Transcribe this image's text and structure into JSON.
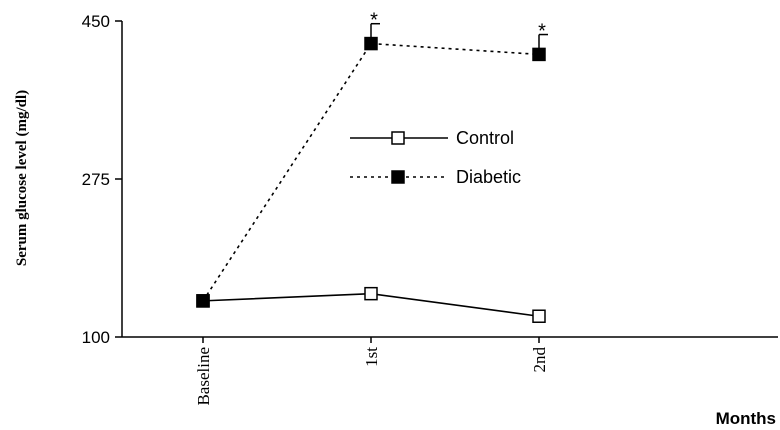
{
  "chart_data": {
    "type": "line",
    "title": "",
    "xlabel": "Months",
    "ylabel": "Serum glucose level (mg/dl)",
    "categories": [
      "Baseline",
      "1st",
      "2nd"
    ],
    "ylim": [
      100,
      450
    ],
    "yticks": [
      "100",
      "275",
      "450"
    ],
    "legend_position": "center",
    "series": [
      {
        "name": "Control",
        "values": [
          140,
          148,
          123
        ],
        "errors": [
          0,
          0,
          0
        ],
        "line_style": "solid",
        "marker": "open-square",
        "annotations": [
          "",
          "",
          ""
        ]
      },
      {
        "name": "Diabetic",
        "values": [
          140,
          425,
          413
        ],
        "errors": [
          0,
          22,
          22
        ],
        "line_style": "dotted",
        "marker": "filled-square",
        "annotations": [
          "",
          "*",
          "*"
        ]
      }
    ]
  }
}
